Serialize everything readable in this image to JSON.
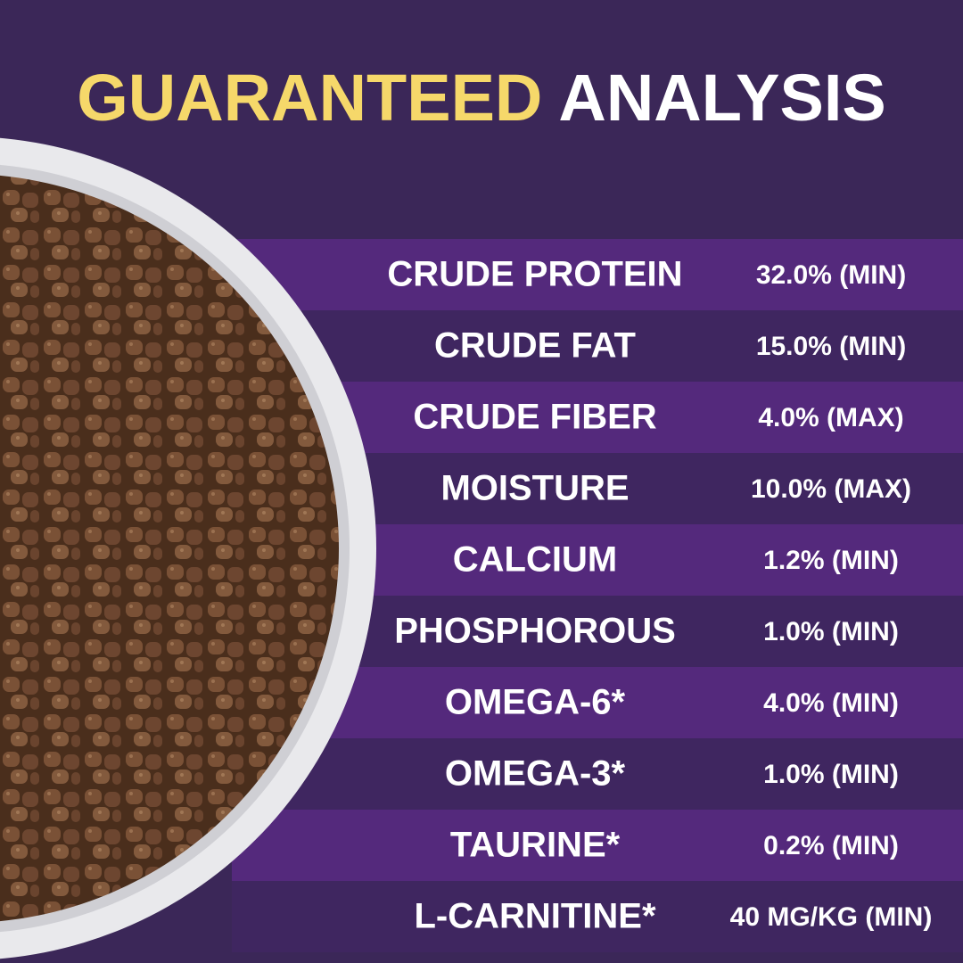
{
  "header": {
    "title_highlight": "GUARANTEED",
    "title_rest": "ANALYSIS"
  },
  "table": {
    "rows": [
      [
        "CRUDE PROTEIN",
        "32.0% (MIN)"
      ],
      [
        "CRUDE FAT",
        "15.0% (MIN)"
      ],
      [
        "CRUDE FIBER",
        "4.0% (MAX)"
      ],
      [
        "MOISTURE",
        "10.0% (MAX)"
      ],
      [
        "CALCIUM",
        "1.2% (MIN)"
      ],
      [
        "PHOSPHOROUS",
        "1.0% (MIN)"
      ],
      [
        "OMEGA-6*",
        "4.0% (MIN)"
      ],
      [
        "OMEGA-3*",
        "1.0% (MIN)"
      ],
      [
        "TAURINE*",
        "0.2% (MIN)"
      ],
      [
        "L-CARNITINE*",
        "40 MG/KG (MIN)"
      ]
    ]
  }
}
